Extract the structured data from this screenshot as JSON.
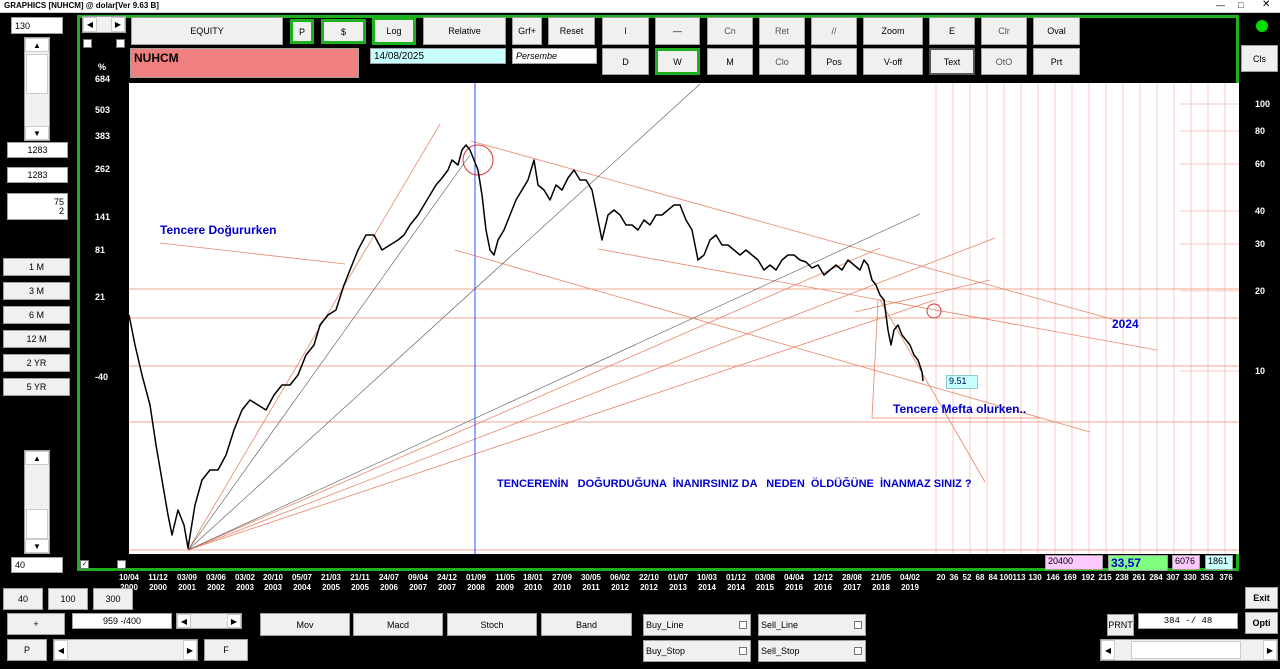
{
  "window": {
    "title": "GRAPHICS  [NUHCM] @ dolar[Ver 9.63 B]"
  },
  "left": {
    "top_value": "130",
    "f1": "1283",
    "f2": "1283",
    "f3_line1": "75",
    "f3_line2": "2",
    "periods": [
      "1 M",
      "3 M",
      "6 M",
      "12 M",
      "2 YR",
      "5 YR"
    ],
    "bottom_value": "40"
  },
  "toolbar": {
    "equity": "EQUITY",
    "p": "P",
    "dollar": "$",
    "log": "Log",
    "relative": "Relative",
    "grf": "Grf+",
    "reset": "Reset",
    "l": "l",
    "dash": "—",
    "cn": "Cn",
    "ret": "Ret",
    "slash": "//",
    "zoom": "Zoom",
    "e": "E",
    "clr": "Clr",
    "oval": "Oval",
    "cls": "Cls",
    "d": "D",
    "w": "W",
    "m": "M",
    "clo": "Clo",
    "pos": "Pos",
    "voff": "V-off",
    "text": "Text",
    "oto": "OtO",
    "prt": "Prt"
  },
  "info": {
    "symbol": "NUHCM",
    "date": "14/08/2025",
    "day": "Persembe"
  },
  "axis": {
    "unit": "%",
    "left_ticks": [
      "684",
      "503",
      "383",
      "262",
      "141",
      "81",
      "21",
      "-40"
    ],
    "right_ticks": [
      "100",
      "80",
      "60",
      "40",
      "30",
      "20",
      "10"
    ],
    "x_labels": [
      [
        "10/04",
        "2000"
      ],
      [
        "11/12",
        "2000"
      ],
      [
        "03/09",
        "2001"
      ],
      [
        "03/06",
        "2002"
      ],
      [
        "03/02",
        "2003"
      ],
      [
        "20/10",
        "2003"
      ],
      [
        "05/07",
        "2004"
      ],
      [
        "21/03",
        "2005"
      ],
      [
        "21/11",
        "2005"
      ],
      [
        "24/07",
        "2006"
      ],
      [
        "09/04",
        "2007"
      ],
      [
        "24/12",
        "2007"
      ],
      [
        "01/09",
        "2008"
      ],
      [
        "11/05",
        "2009"
      ],
      [
        "18/01",
        "2010"
      ],
      [
        "27/09",
        "2010"
      ],
      [
        "30/05",
        "2011"
      ],
      [
        "06/02",
        "2012"
      ],
      [
        "22/10",
        "2012"
      ],
      [
        "01/07",
        "2013"
      ],
      [
        "10/03",
        "2014"
      ],
      [
        "01/12",
        "2014"
      ],
      [
        "03/08",
        "2015"
      ],
      [
        "04/04",
        "2016"
      ],
      [
        "12/12",
        "2016"
      ],
      [
        "28/08",
        "2017"
      ],
      [
        "21/05",
        "2018"
      ],
      [
        "04/02",
        "2019"
      ]
    ],
    "x_nums": [
      "20",
      "36",
      "52",
      "68",
      "84",
      "100",
      "113",
      "130",
      "146",
      "169",
      "192",
      "215",
      "238",
      "261",
      "284",
      "307",
      "330",
      "353",
      "376"
    ]
  },
  "annotations": {
    "left_text": "Tencere Doğururken",
    "right_text": "Tencere Mefta olurken..",
    "year_text": "2024",
    "center_text": "TENCERENİN   DOĞURDUĞUNA  İNANIRSINIZ DA   NEDEN  ÖLDÜĞÜNE  İNANMAZ SINIZ ?",
    "price_label": "9.51"
  },
  "bottom_boxes": {
    "b1": "20400",
    "b2": "33,57",
    "b3": "6076",
    "b4": "1861"
  },
  "bottom": {
    "b40": "40",
    "b100": "100",
    "b300": "300",
    "plus": "+",
    "range": "959 -/400",
    "p": "P",
    "f": "F",
    "mov": "Mov",
    "macd": "Macd",
    "stoch": "Stoch",
    "band": "Band",
    "buy_line": "Buy_Line",
    "sell_line": "Sell_Line",
    "buy_stop": "Buy_Stop",
    "sell_stop": "Sell_Stop",
    "prnt": "PRNT",
    "count": "384 -/ 48",
    "exit": "Exit",
    "opti": "Opti"
  },
  "colors": {
    "chart_bg": "#ffffff",
    "green": "#1db11d",
    "symbol_bg": "#f08080",
    "date_bg": "#c8ffff",
    "box1": "#ffc8ff",
    "box2": "#80ff80",
    "box3": "#ffc8ff",
    "box4": "#c8ffff",
    "annot": "#0000cd",
    "trend": "#e8866a"
  }
}
